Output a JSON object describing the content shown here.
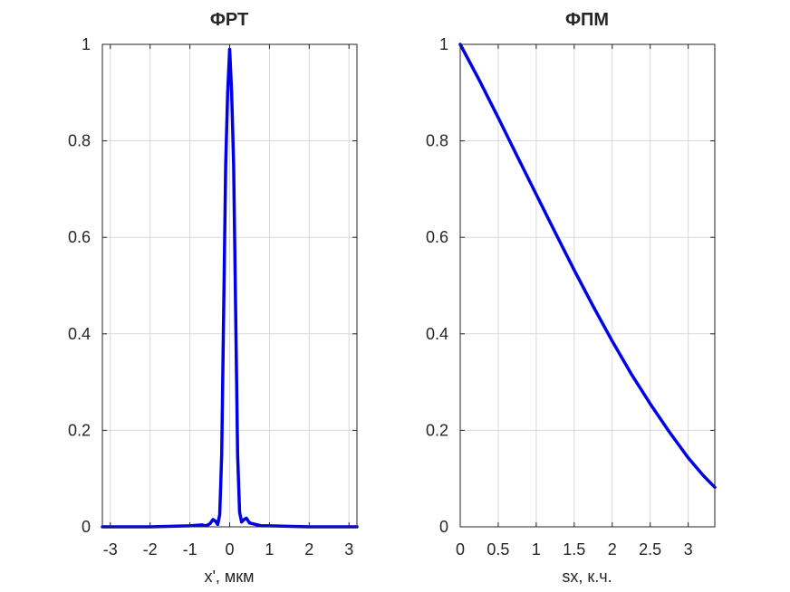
{
  "chart_data": [
    {
      "type": "line",
      "title": "ФРТ",
      "xlabel": "x', мкм",
      "ylabel": "",
      "xlim": [
        -3.2,
        3.2
      ],
      "ylim": [
        0,
        1
      ],
      "xticks": [
        -3,
        -2,
        -1,
        0,
        1,
        2,
        3
      ],
      "xtick_labels": [
        "-3",
        "-2",
        "-1",
        "0",
        "1",
        "2",
        "3"
      ],
      "yticks": [
        0,
        0.2,
        0.4,
        0.6,
        0.8,
        1
      ],
      "ytick_labels": [
        "0",
        "0.2",
        "0.4",
        "0.6",
        "0.8",
        "1"
      ],
      "grid": true,
      "color": "#0000e6",
      "series": [
        {
          "x": [
            -3.2,
            -2.0,
            -1.0,
            -0.7,
            -0.6,
            -0.5,
            -0.42,
            -0.36,
            -0.3,
            -0.25,
            -0.2,
            -0.15,
            -0.1,
            -0.05,
            0.0,
            0.05,
            0.1,
            0.15,
            0.2,
            0.25,
            0.3,
            0.36,
            0.42,
            0.5,
            0.6,
            0.7,
            0.8,
            1.0,
            2.0,
            3.2
          ],
          "y": [
            0.0,
            0.0,
            0.002,
            0.004,
            0.002,
            0.006,
            0.015,
            0.012,
            0.005,
            0.025,
            0.15,
            0.45,
            0.75,
            0.9,
            0.99,
            0.9,
            0.75,
            0.45,
            0.15,
            0.03,
            0.01,
            0.015,
            0.018,
            0.008,
            0.006,
            0.004,
            0.002,
            0.002,
            0.0,
            0.0
          ]
        }
      ]
    },
    {
      "type": "line",
      "title": "ФПМ",
      "xlabel": "sx, к.ч.",
      "ylabel": "",
      "xlim": [
        0,
        3.35
      ],
      "ylim": [
        0,
        1
      ],
      "xticks": [
        0,
        0.5,
        1,
        1.5,
        2,
        2.5,
        3
      ],
      "xtick_labels": [
        "0",
        "0.5",
        "1",
        "1.5",
        "2",
        "2.5",
        "3"
      ],
      "yticks": [
        0,
        0.2,
        0.4,
        0.6,
        0.8,
        1
      ],
      "ytick_labels": [
        "0",
        "0.2",
        "0.4",
        "0.6",
        "0.8",
        "1"
      ],
      "grid": true,
      "color": "#0000e6",
      "series": [
        {
          "x": [
            0.0,
            0.25,
            0.5,
            0.75,
            1.0,
            1.25,
            1.5,
            1.75,
            2.0,
            2.25,
            2.5,
            2.75,
            3.0,
            3.2,
            3.35
          ],
          "y": [
            1.0,
            0.926,
            0.848,
            0.768,
            0.689,
            0.61,
            0.532,
            0.457,
            0.385,
            0.317,
            0.255,
            0.197,
            0.143,
            0.106,
            0.082
          ]
        }
      ]
    }
  ]
}
